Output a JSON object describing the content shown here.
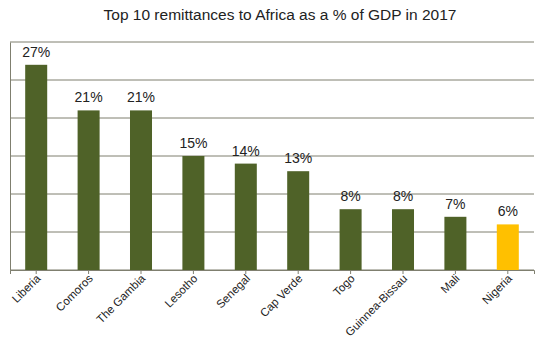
{
  "chart_data": {
    "type": "bar",
    "title": "Top 10 remittances to Africa as a % of GDP in 2017",
    "categories": [
      "Liberia",
      "Comoros",
      "The Gambia",
      "Lesotho",
      "Senegal",
      "Cap Verde",
      "Togo",
      "Guinnea-Bissau",
      "Mali",
      "Nigeria"
    ],
    "values": [
      27,
      21,
      21,
      15,
      14,
      13,
      8,
      8,
      7,
      6
    ],
    "value_labels": [
      "27%",
      "21%",
      "21%",
      "15%",
      "14%",
      "13%",
      "8%",
      "8%",
      "7%",
      "6%"
    ],
    "colors": [
      "#4f6228",
      "#4f6228",
      "#4f6228",
      "#4f6228",
      "#4f6228",
      "#4f6228",
      "#4f6228",
      "#4f6228",
      "#4f6228",
      "#ffc000"
    ],
    "ylim": [
      0,
      30
    ],
    "yticks": [
      0,
      5,
      10,
      15,
      20,
      25,
      30
    ],
    "grid": true,
    "data_labels": true,
    "tick_labels": "x"
  }
}
